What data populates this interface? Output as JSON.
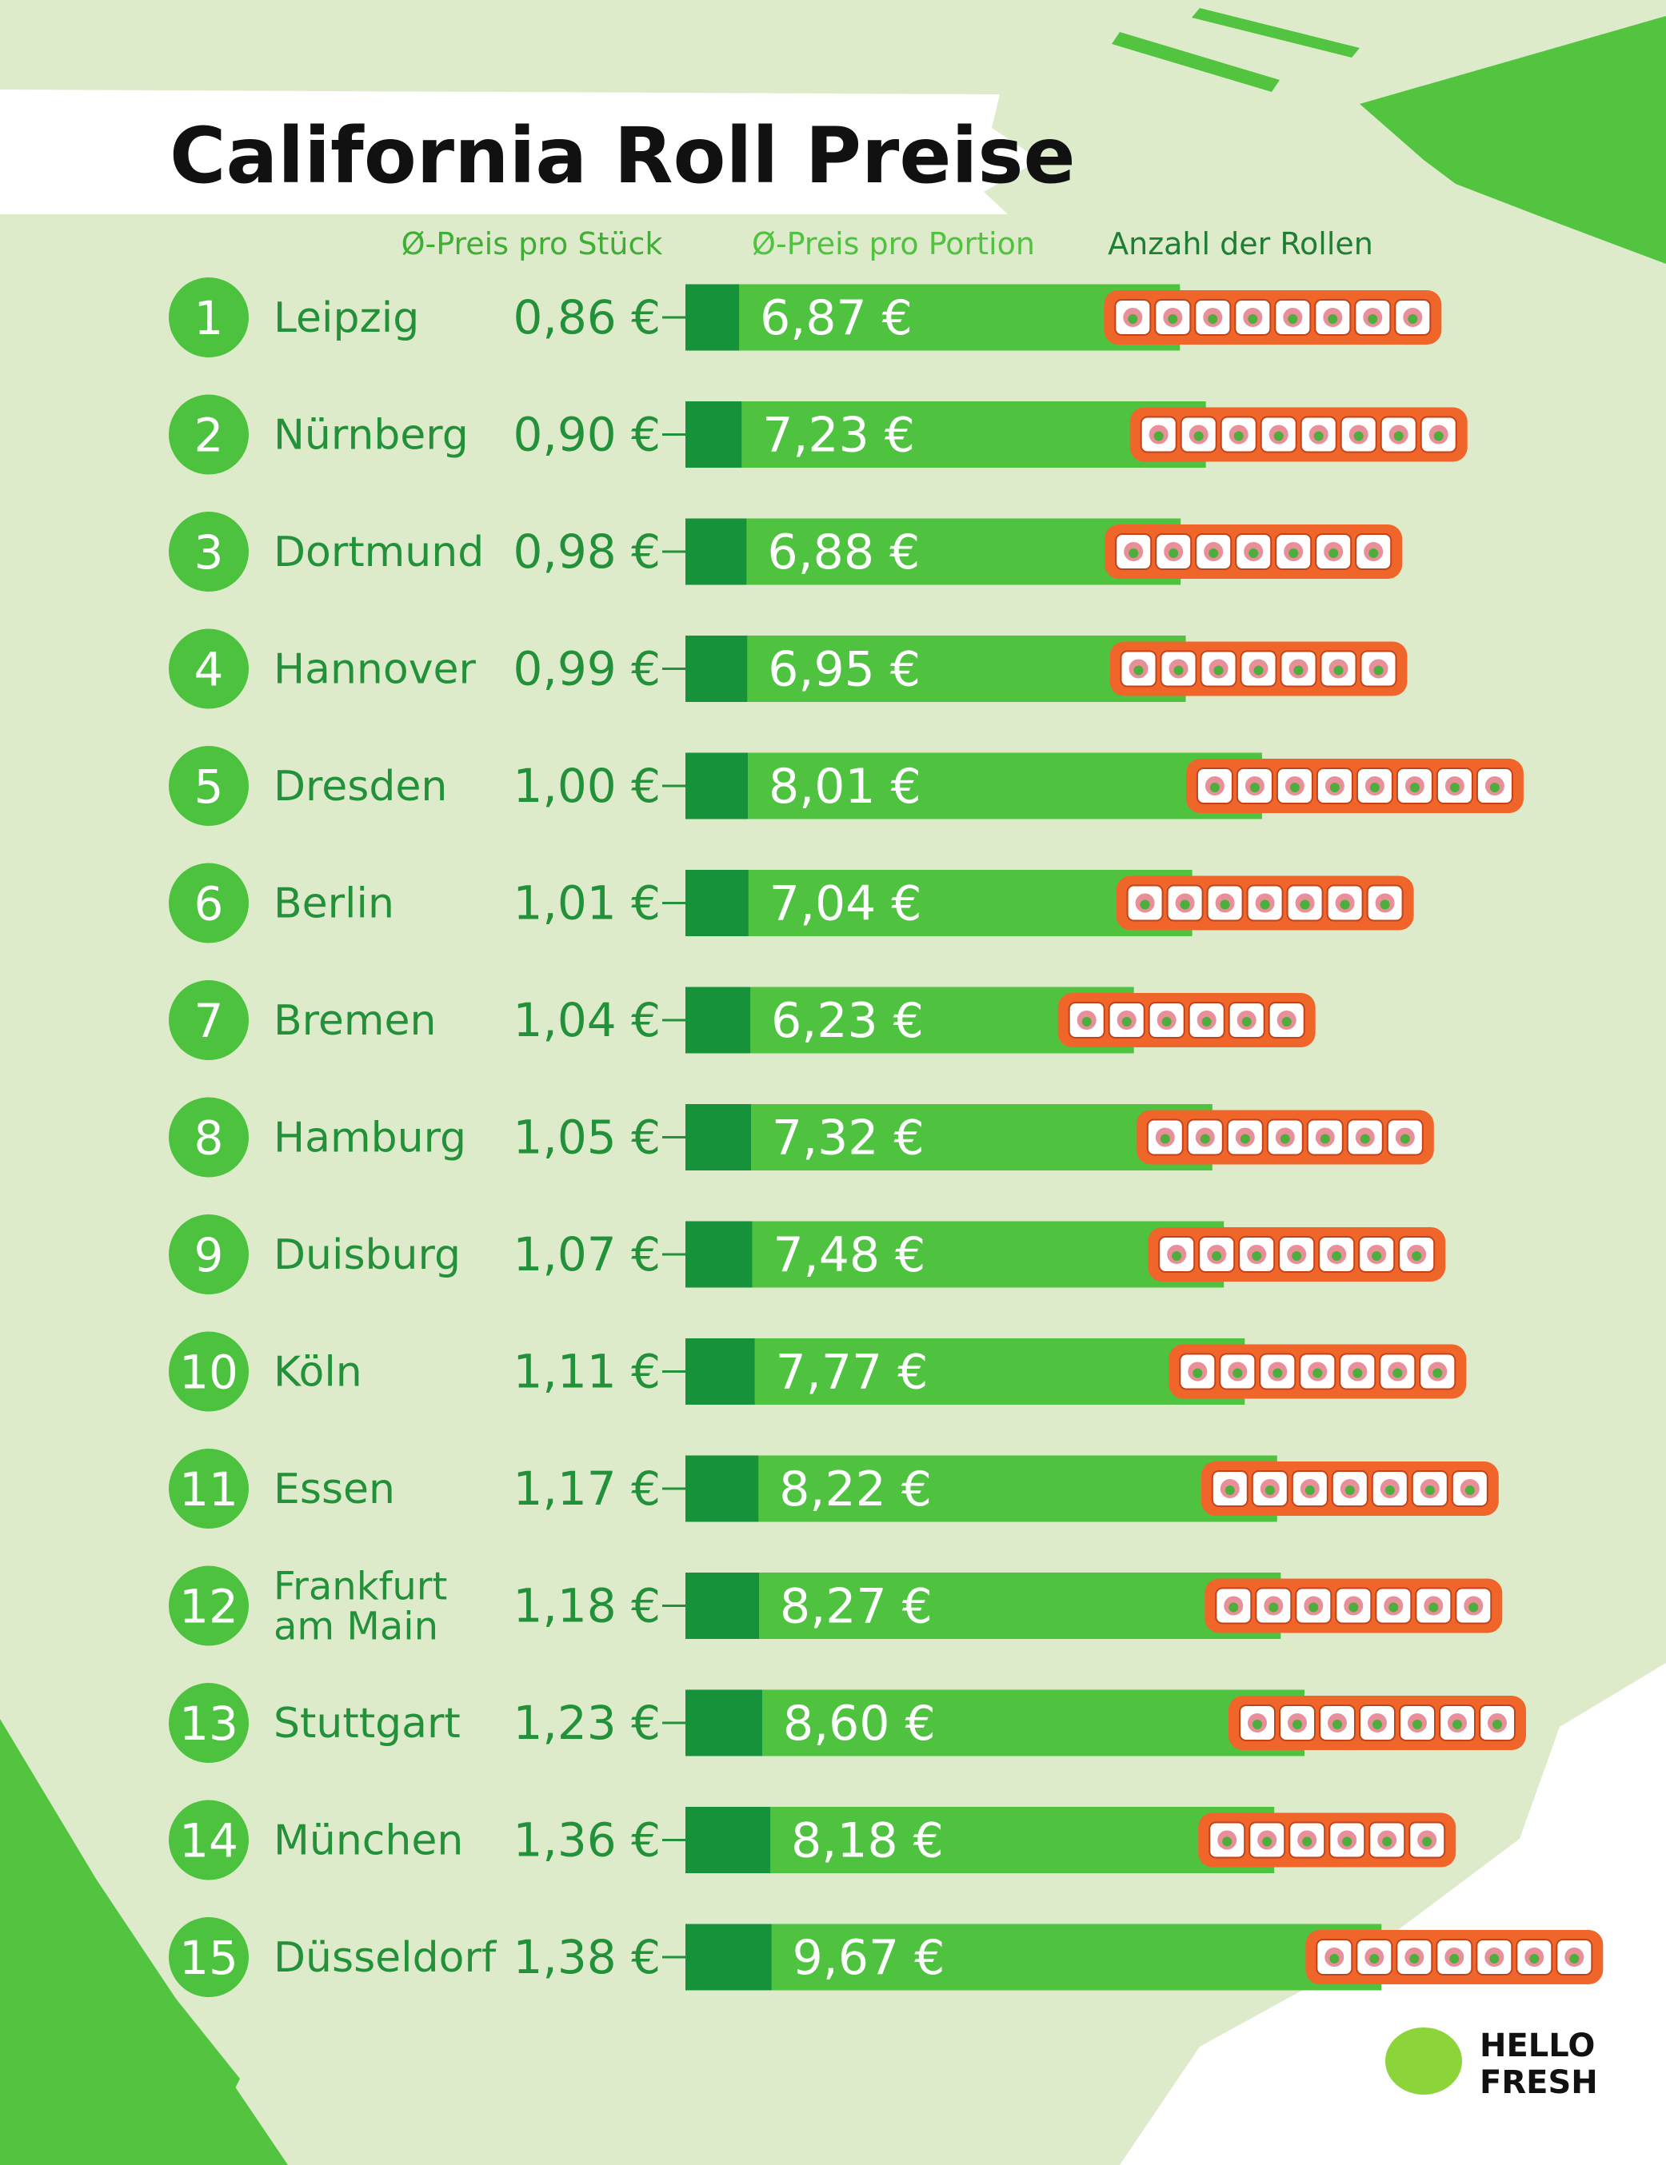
{
  "chart_data": {
    "type": "ranked-bar",
    "title": "California Roll Preise",
    "ranks": [
      1,
      2,
      3,
      4,
      5,
      6,
      7,
      8,
      9,
      10,
      11,
      12,
      13,
      14,
      15
    ],
    "categories": [
      "Leipzig",
      "Nürnberg",
      "Dortmund",
      "Hannover",
      "Dresden",
      "Berlin",
      "Bremen",
      "Hamburg",
      "Duisburg",
      "Köln",
      "Essen",
      "Frankfurt am Main",
      "Stuttgart",
      "München",
      "Düsseldorf"
    ],
    "series": [
      {
        "name": "Ø-Preis pro Stück",
        "color": "#16923a",
        "values": [
          0.86,
          0.9,
          0.98,
          0.99,
          1.0,
          1.01,
          1.04,
          1.05,
          1.07,
          1.11,
          1.17,
          1.18,
          1.23,
          1.36,
          1.38
        ],
        "value_labels": [
          "0,86 €",
          "0,90 €",
          "0,98 €",
          "0,99 €",
          "1,00 €",
          "1,01 €",
          "1,04 €",
          "1,05 €",
          "1,07 €",
          "1,11 €",
          "1,17 €",
          "1,18 €",
          "1,23 €",
          "1,36 €",
          "1,38 €"
        ]
      },
      {
        "name": "Ø-Preis pro Portion",
        "color": "#4fc340",
        "values": [
          6.87,
          7.23,
          6.88,
          6.95,
          8.01,
          7.04,
          6.23,
          7.32,
          7.48,
          7.77,
          8.22,
          8.27,
          8.6,
          8.18,
          9.67
        ],
        "value_labels": [
          "6,87 €",
          "7,23 €",
          "6,88 €",
          "6,95 €",
          "8,01 €",
          "7,04 €",
          "6,23 €",
          "7,32 €",
          "7,48 €",
          "7,77 €",
          "8,22 €",
          "8,27 €",
          "8,60 €",
          "8,18 €",
          "9,67 €"
        ]
      },
      {
        "name": "Anzahl der Rollen",
        "color": "#f0652a",
        "values": [
          8,
          8,
          7,
          7,
          8,
          7,
          6,
          7,
          7,
          7,
          7,
          7,
          7,
          6,
          7
        ]
      }
    ],
    "logo": [
      "HELLO",
      "FRESH"
    ]
  }
}
